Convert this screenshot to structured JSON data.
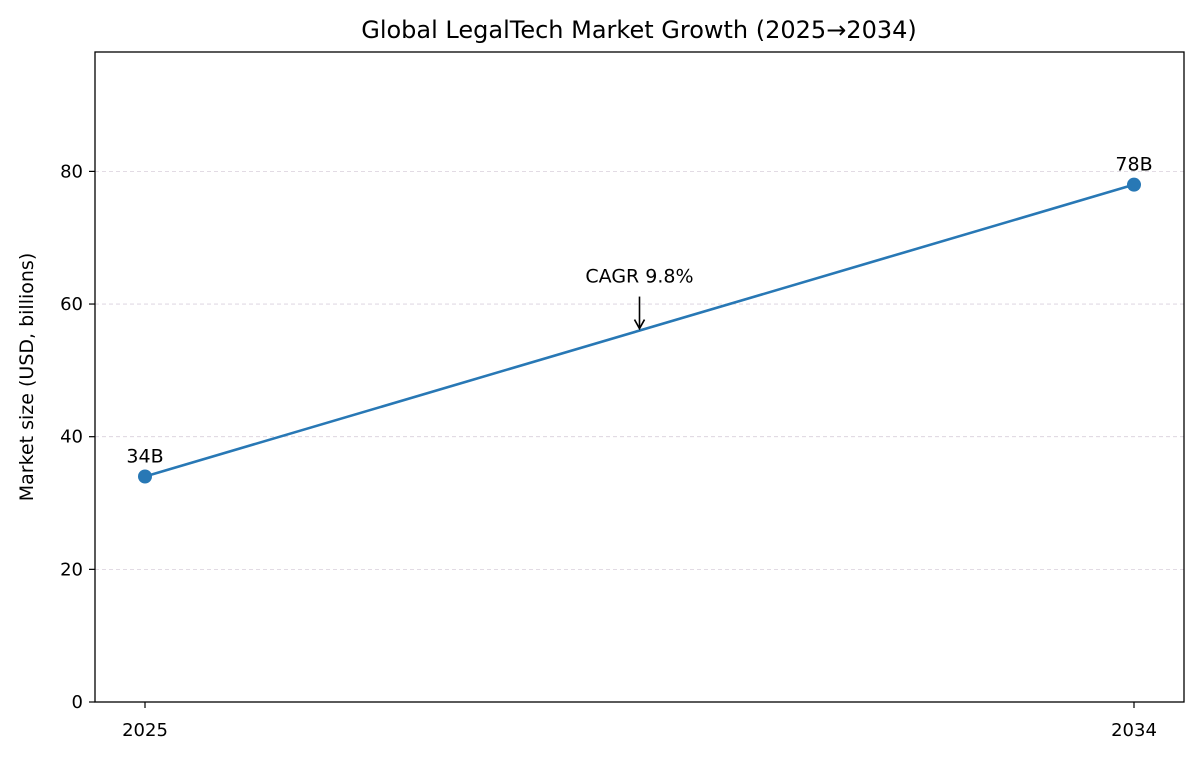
{
  "chart_data": {
    "type": "line",
    "title": "Global LegalTech Market Growth (2025→2034)",
    "xlabel": "",
    "ylabel": "Market size (USD, billions)",
    "x": [
      "2025",
      "2034"
    ],
    "series": [
      {
        "values": [
          34,
          78
        ],
        "color": "#2878b5"
      }
    ],
    "data_labels": [
      "34B",
      "78B"
    ],
    "ylim": [
      0,
      98
    ],
    "yticks": [
      0,
      20,
      40,
      60,
      80
    ],
    "grid": "horizontal dashed",
    "annotation": {
      "text": "CAGR 9.8%",
      "x_fraction": 0.5,
      "y": 56
    }
  }
}
